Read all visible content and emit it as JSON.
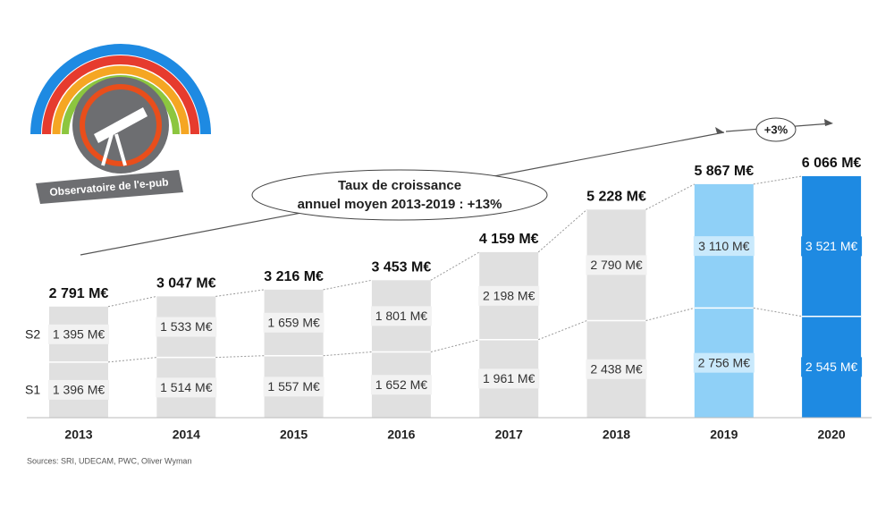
{
  "chart_data": {
    "type": "stacked_bar",
    "categories": [
      "2013",
      "2014",
      "2015",
      "2016",
      "2017",
      "2018",
      "2019",
      "2020"
    ],
    "colors": [
      "#e0e0e0",
      "#e0e0e0",
      "#e0e0e0",
      "#e0e0e0",
      "#e0e0e0",
      "#e0e0e0",
      "#8fd0f7",
      "#1e8ae2"
    ],
    "series": [
      {
        "name": "S1",
        "values": [
          1396,
          1514,
          1557,
          1652,
          1961,
          2438,
          2756,
          2545
        ],
        "value_labels": [
          "1 396 M€",
          "1 514 M€",
          "1 557 M€",
          "1 652 M€",
          "1 961 M€",
          "2 438 M€",
          "2 756 M€",
          "2 545 M€"
        ]
      },
      {
        "name": "S2",
        "values": [
          1395,
          1533,
          1659,
          1801,
          2198,
          2790,
          3110,
          3521
        ],
        "value_labels": [
          "1 395 M€",
          "1 533 M€",
          "1 659 M€",
          "1 801 M€",
          "2 198 M€",
          "2 790 M€",
          "3 110 M€",
          "3 521 M€"
        ]
      }
    ],
    "totals": {
      "values": [
        2791,
        3047,
        3216,
        3453,
        4159,
        5228,
        5867,
        6066
      ],
      "value_labels": [
        "2 791 M€",
        "3 047 M€",
        "3 216 M€",
        "3 453 M€",
        "4 159 M€",
        "5 228 M€",
        "5 867 M€",
        "6 066 M€"
      ]
    },
    "annotations": [
      "Taux de croissance",
      "annuel moyen 2013-2019 : +13%",
      "+3%"
    ],
    "logo_text": "Observatoire de l'e-pub",
    "source": "Sources: SRI, UDECAM, PWC, Oliver Wyman"
  }
}
